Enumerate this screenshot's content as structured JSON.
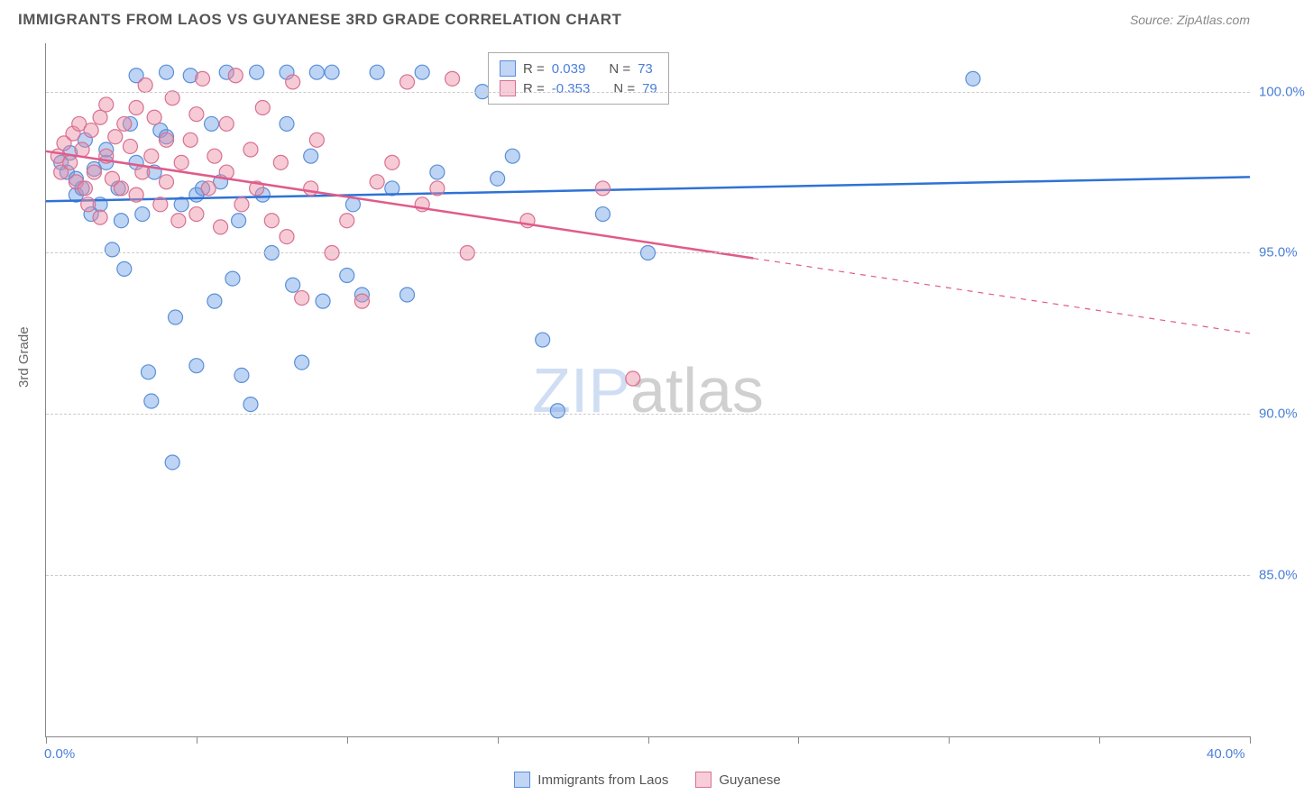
{
  "title": "IMMIGRANTS FROM LAOS VS GUYANESE 3RD GRADE CORRELATION CHART",
  "source_label": "Source: ZipAtlas.com",
  "y_axis_label": "3rd Grade",
  "watermark": {
    "part1": "ZIP",
    "part2": "atlas"
  },
  "chart": {
    "type": "scatter",
    "xlim": [
      0,
      40
    ],
    "ylim": [
      80,
      101.5
    ],
    "x_ticks": [
      0,
      5,
      10,
      15,
      20,
      25,
      30,
      35,
      40
    ],
    "x_tick_labels": {
      "0": "0.0%",
      "40": "40.0%"
    },
    "y_gridlines": [
      85,
      90,
      95,
      100
    ],
    "y_tick_labels": {
      "85": "85.0%",
      "90": "90.0%",
      "95": "95.0%",
      "100": "100.0%"
    },
    "background_color": "#ffffff",
    "grid_color": "#cccccc",
    "series": [
      {
        "name": "Immigrants from Laos",
        "marker_fill": "rgba(110,160,230,0.45)",
        "marker_stroke": "#5a8fd8",
        "marker_radius": 8,
        "line_color": "#2f72d6",
        "line_width": 2.5,
        "trend": {
          "x1": 0,
          "y1": 96.6,
          "x2": 40,
          "y2": 97.35,
          "solid_until_x": 40
        },
        "stats": {
          "R": "0.039",
          "N": "73"
        },
        "points": [
          [
            0.5,
            97.8
          ],
          [
            0.7,
            97.5
          ],
          [
            0.8,
            98.1
          ],
          [
            1.0,
            96.8
          ],
          [
            1.0,
            97.3
          ],
          [
            1.2,
            97.0
          ],
          [
            1.3,
            98.5
          ],
          [
            1.5,
            96.2
          ],
          [
            1.6,
            97.6
          ],
          [
            1.8,
            96.5
          ],
          [
            2.0,
            97.8
          ],
          [
            2.0,
            98.2
          ],
          [
            2.2,
            95.1
          ],
          [
            2.4,
            97.0
          ],
          [
            2.5,
            96.0
          ],
          [
            2.6,
            94.5
          ],
          [
            2.8,
            99.0
          ],
          [
            3.0,
            97.8
          ],
          [
            3.0,
            100.5
          ],
          [
            3.2,
            96.2
          ],
          [
            3.4,
            91.3
          ],
          [
            3.5,
            90.4
          ],
          [
            3.6,
            97.5
          ],
          [
            3.8,
            98.8
          ],
          [
            4.0,
            100.6
          ],
          [
            4.0,
            98.6
          ],
          [
            4.2,
            88.5
          ],
          [
            4.3,
            93.0
          ],
          [
            4.5,
            96.5
          ],
          [
            4.8,
            100.5
          ],
          [
            5.0,
            96.8
          ],
          [
            5.0,
            91.5
          ],
          [
            5.2,
            97.0
          ],
          [
            5.5,
            99.0
          ],
          [
            5.6,
            93.5
          ],
          [
            5.8,
            97.2
          ],
          [
            6.0,
            100.6
          ],
          [
            6.2,
            94.2
          ],
          [
            6.4,
            96.0
          ],
          [
            6.5,
            91.2
          ],
          [
            6.8,
            90.3
          ],
          [
            7.0,
            100.6
          ],
          [
            7.2,
            96.8
          ],
          [
            7.5,
            95.0
          ],
          [
            8.0,
            99.0
          ],
          [
            8.0,
            100.6
          ],
          [
            8.2,
            94.0
          ],
          [
            8.5,
            91.6
          ],
          [
            8.8,
            98.0
          ],
          [
            9.0,
            100.6
          ],
          [
            9.2,
            93.5
          ],
          [
            9.5,
            100.6
          ],
          [
            10.0,
            94.3
          ],
          [
            10.2,
            96.5
          ],
          [
            10.5,
            93.7
          ],
          [
            11.0,
            100.6
          ],
          [
            11.5,
            97.0
          ],
          [
            12.0,
            93.7
          ],
          [
            12.5,
            100.6
          ],
          [
            13.0,
            97.5
          ],
          [
            14.5,
            100.0
          ],
          [
            15.0,
            97.3
          ],
          [
            15.5,
            98.0
          ],
          [
            16.5,
            92.3
          ],
          [
            17.0,
            90.1
          ],
          [
            18.5,
            96.2
          ],
          [
            20.0,
            95.0
          ],
          [
            30.8,
            100.4
          ]
        ]
      },
      {
        "name": "Guyanese",
        "marker_fill": "rgba(235,140,165,0.45)",
        "marker_stroke": "#d87090",
        "marker_radius": 8,
        "line_color": "#e05b8a",
        "line_width": 2.5,
        "trend": {
          "x1": 0,
          "y1": 98.15,
          "x2": 40,
          "y2": 92.5,
          "solid_until_x": 23.5
        },
        "stats": {
          "R": "-0.353",
          "N": "79"
        },
        "points": [
          [
            0.4,
            98.0
          ],
          [
            0.5,
            97.5
          ],
          [
            0.6,
            98.4
          ],
          [
            0.8,
            97.8
          ],
          [
            0.9,
            98.7
          ],
          [
            1.0,
            97.2
          ],
          [
            1.1,
            99.0
          ],
          [
            1.2,
            98.2
          ],
          [
            1.3,
            97.0
          ],
          [
            1.4,
            96.5
          ],
          [
            1.5,
            98.8
          ],
          [
            1.6,
            97.5
          ],
          [
            1.8,
            99.2
          ],
          [
            1.8,
            96.1
          ],
          [
            2.0,
            98.0
          ],
          [
            2.0,
            99.6
          ],
          [
            2.2,
            97.3
          ],
          [
            2.3,
            98.6
          ],
          [
            2.5,
            97.0
          ],
          [
            2.6,
            99.0
          ],
          [
            2.8,
            98.3
          ],
          [
            3.0,
            99.5
          ],
          [
            3.0,
            96.8
          ],
          [
            3.2,
            97.5
          ],
          [
            3.3,
            100.2
          ],
          [
            3.5,
            98.0
          ],
          [
            3.6,
            99.2
          ],
          [
            3.8,
            96.5
          ],
          [
            4.0,
            98.5
          ],
          [
            4.0,
            97.2
          ],
          [
            4.2,
            99.8
          ],
          [
            4.4,
            96.0
          ],
          [
            4.5,
            97.8
          ],
          [
            4.8,
            98.5
          ],
          [
            5.0,
            99.3
          ],
          [
            5.0,
            96.2
          ],
          [
            5.2,
            100.4
          ],
          [
            5.4,
            97.0
          ],
          [
            5.6,
            98.0
          ],
          [
            5.8,
            95.8
          ],
          [
            6.0,
            97.5
          ],
          [
            6.0,
            99.0
          ],
          [
            6.3,
            100.5
          ],
          [
            6.5,
            96.5
          ],
          [
            6.8,
            98.2
          ],
          [
            7.0,
            97.0
          ],
          [
            7.2,
            99.5
          ],
          [
            7.5,
            96.0
          ],
          [
            7.8,
            97.8
          ],
          [
            8.0,
            95.5
          ],
          [
            8.2,
            100.3
          ],
          [
            8.5,
            93.6
          ],
          [
            8.8,
            97.0
          ],
          [
            9.0,
            98.5
          ],
          [
            9.5,
            95.0
          ],
          [
            10.0,
            96.0
          ],
          [
            10.5,
            93.5
          ],
          [
            11.0,
            97.2
          ],
          [
            11.5,
            97.8
          ],
          [
            12.0,
            100.3
          ],
          [
            12.5,
            96.5
          ],
          [
            13.0,
            97.0
          ],
          [
            13.5,
            100.4
          ],
          [
            14.0,
            95.0
          ],
          [
            16.0,
            96.0
          ],
          [
            18.5,
            97.0
          ],
          [
            19.5,
            91.1
          ]
        ]
      }
    ]
  },
  "stats_box": {
    "label_R": "R =",
    "label_N": "N ="
  },
  "bottom_legend": [
    {
      "swatch": "blue",
      "label": "Immigrants from Laos"
    },
    {
      "swatch": "pink",
      "label": "Guyanese"
    }
  ]
}
